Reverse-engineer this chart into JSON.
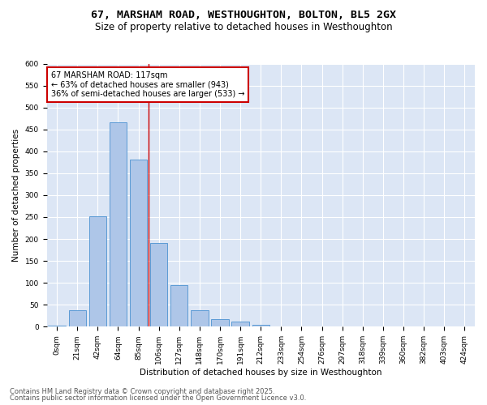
{
  "title1": "67, MARSHAM ROAD, WESTHOUGHTON, BOLTON, BL5 2GX",
  "title2": "Size of property relative to detached houses in Westhoughton",
  "xlabel": "Distribution of detached houses by size in Westhoughton",
  "ylabel": "Number of detached properties",
  "bar_color": "#aec6e8",
  "bar_edge_color": "#5b9bd5",
  "background_color": "#dce6f5",
  "annotation_text": "67 MARSHAM ROAD: 117sqm\n← 63% of detached houses are smaller (943)\n36% of semi-detached houses are larger (533) →",
  "vline_x": 4.5,
  "vline_color": "#cc0000",
  "categories": [
    "0sqm",
    "21sqm",
    "42sqm",
    "64sqm",
    "85sqm",
    "106sqm",
    "127sqm",
    "148sqm",
    "170sqm",
    "191sqm",
    "212sqm",
    "233sqm",
    "254sqm",
    "276sqm",
    "297sqm",
    "318sqm",
    "339sqm",
    "360sqm",
    "382sqm",
    "403sqm",
    "424sqm"
  ],
  "values": [
    2,
    38,
    252,
    467,
    382,
    191,
    94,
    37,
    18,
    11,
    4,
    1,
    0,
    0,
    0,
    0,
    0,
    0,
    0,
    0,
    0
  ],
  "ylim": [
    0,
    600
  ],
  "yticks": [
    0,
    50,
    100,
    150,
    200,
    250,
    300,
    350,
    400,
    450,
    500,
    550,
    600
  ],
  "footer1": "Contains HM Land Registry data © Crown copyright and database right 2025.",
  "footer2": "Contains public sector information licensed under the Open Government Licence v3.0.",
  "title1_fontsize": 9.5,
  "title2_fontsize": 8.5,
  "axis_fontsize": 7.5,
  "tick_fontsize": 6.5,
  "annotation_fontsize": 7.0,
  "footer_fontsize": 6.0
}
